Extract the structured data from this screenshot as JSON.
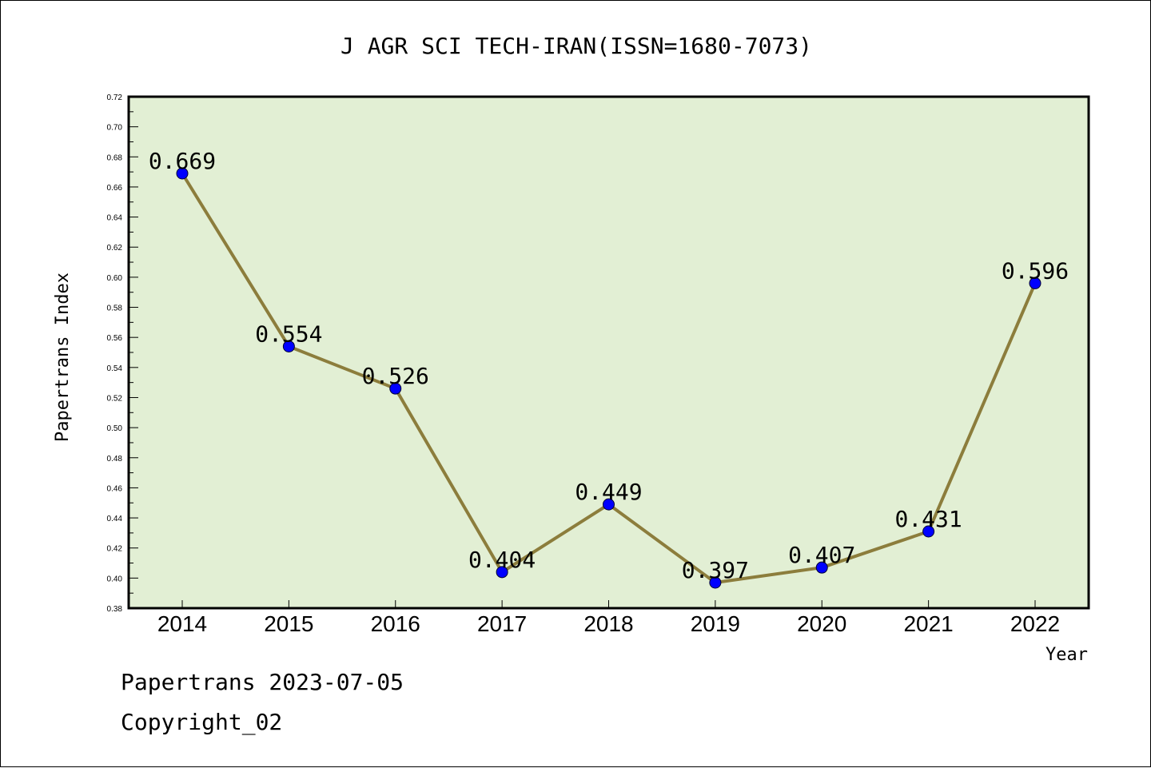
{
  "chart_data": {
    "type": "line",
    "title": "J AGR SCI TECH-IRAN(ISSN=1680-7073)",
    "xlabel": "Year",
    "ylabel": "Papertrans Index",
    "categories": [
      "2014",
      "2015",
      "2016",
      "2017",
      "2018",
      "2019",
      "2020",
      "2021",
      "2022"
    ],
    "values": [
      0.669,
      0.554,
      0.526,
      0.404,
      0.449,
      0.397,
      0.407,
      0.431,
      0.596
    ],
    "data_labels": [
      "0.669",
      "0.554",
      "0.526",
      "0.404",
      "0.449",
      "0.397",
      "0.407",
      "0.431",
      "0.596"
    ],
    "ylim": [
      0.38,
      0.72
    ],
    "yticks": [
      "0.38",
      "0.40",
      "0.42",
      "0.44",
      "0.46",
      "0.48",
      "0.50",
      "0.52",
      "0.54",
      "0.56",
      "0.58",
      "0.60",
      "0.62",
      "0.64",
      "0.66",
      "0.68",
      "0.70",
      "0.72"
    ],
    "grid": false,
    "colors": {
      "plot_background": "#e2efd4",
      "line": "#8c7d3c",
      "marker": "#0000ff"
    }
  },
  "footer": {
    "line1": "Papertrans 2023-07-05",
    "line2": "Copyright_02"
  }
}
